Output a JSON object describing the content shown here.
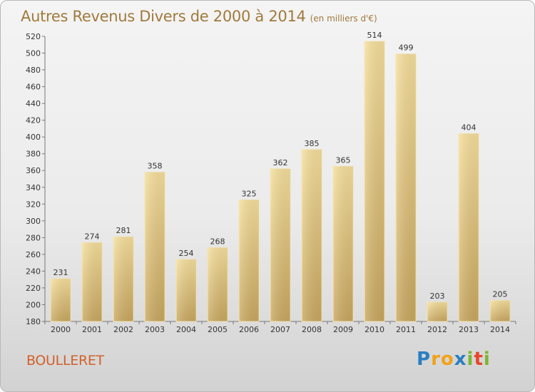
{
  "title": {
    "main": "Autres Revenus Divers de 2000 à 2014",
    "sub": "(en milliers d'€)"
  },
  "commune": "BOULLERET",
  "logo": {
    "letters": [
      "P",
      "r",
      "o",
      "x",
      "i",
      "t",
      "i"
    ],
    "colors": [
      "#2a7fc1",
      "#f2a21a",
      "#f2a21a",
      "#2a7fc1",
      "#7bb631",
      "#e8452c",
      "#7bb631"
    ]
  },
  "chart_data": {
    "type": "bar",
    "title": "Autres Revenus Divers de 2000 à 2014",
    "subtitle": "(en milliers d'€)",
    "categories": [
      "2000",
      "2001",
      "2002",
      "2003",
      "2004",
      "2005",
      "2006",
      "2007",
      "2008",
      "2009",
      "2010",
      "2011",
      "2012",
      "2013",
      "2014"
    ],
    "values": [
      231,
      274,
      281,
      358,
      254,
      268,
      325,
      362,
      385,
      365,
      514,
      499,
      203,
      404,
      205
    ],
    "ylim": [
      180,
      520
    ],
    "yticks": [
      180,
      200,
      220,
      240,
      260,
      280,
      300,
      320,
      340,
      360,
      380,
      400,
      420,
      440,
      460,
      480,
      500,
      520
    ],
    "grid": false,
    "bar_color": "#e6c87a"
  }
}
